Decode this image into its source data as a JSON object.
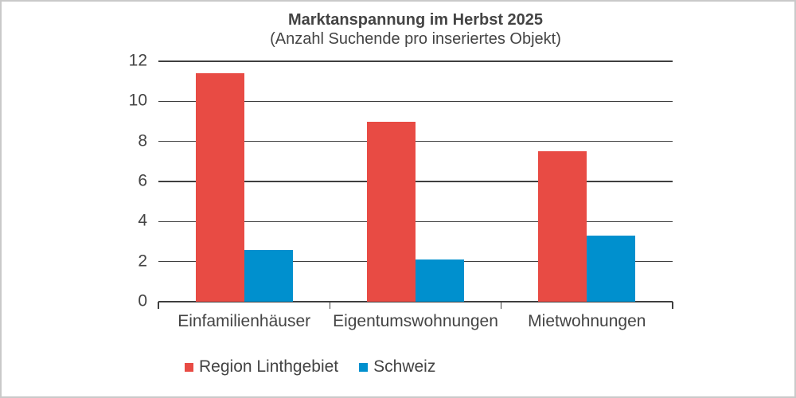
{
  "frame": {
    "border_color": "#c9c9c9",
    "background_color": "#ffffff"
  },
  "chart_data": {
    "type": "bar",
    "title": "Marktanspannung im Herbst 2025",
    "subtitle": "(Anzahl Suchende pro inseriertes Objekt)",
    "categories": [
      "Einfamilienhäuser",
      "Eigentumswohnungen",
      "Mietwohnungen"
    ],
    "series": [
      {
        "name": "Region Linthgebiet",
        "color": "#e84b44",
        "values": [
          11.4,
          9.0,
          7.5
        ]
      },
      {
        "name": "Schweiz",
        "color": "#0090ce",
        "values": [
          2.6,
          2.1,
          3.3
        ]
      }
    ],
    "xlabel": "",
    "ylabel": "",
    "ylim": [
      0,
      12
    ],
    "yticks": [
      0,
      2,
      4,
      6,
      8,
      10,
      12
    ],
    "grid": true,
    "grid_color": "#3f3f3f",
    "axis_color": "#3f3f3f",
    "text_color": "#444444",
    "legend_position": "bottom-left"
  }
}
